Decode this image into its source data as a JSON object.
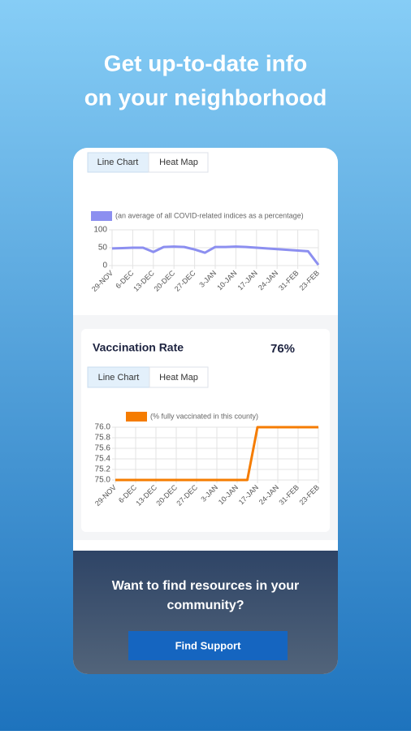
{
  "headline": [
    "Get up-to-date info",
    "on your neighborhood"
  ],
  "index_card": {
    "tabs": [
      "Line Chart",
      "Heat Map"
    ],
    "chart": {
      "type": "line",
      "legend": "(an average of all COVID-related indices as a percentage)",
      "color": "#8c8ff0",
      "categories": [
        "29-NOV",
        null,
        "6-DEC",
        null,
        "13-DEC",
        null,
        "20-DEC",
        null,
        "27-DEC",
        null,
        "3-JAN",
        null,
        "10-JAN",
        null,
        "17-JAN",
        null,
        "24-JAN",
        null,
        "31-FEB",
        null,
        "23-FEB"
      ],
      "values": [
        48,
        49,
        50,
        50,
        38,
        52,
        53,
        52,
        45,
        36,
        52,
        52,
        53,
        52,
        50,
        48,
        46,
        44,
        42,
        40,
        2
      ],
      "ylim": [
        0,
        100
      ],
      "yticks": [
        0,
        50,
        100
      ],
      "grid": true
    }
  },
  "vaccination_card": {
    "title": "Vaccination Rate",
    "rate": "76%",
    "tabs": [
      "Line Chart",
      "Heat Map"
    ],
    "chart": {
      "type": "line",
      "legend": "(% fully vaccinated in this county)",
      "color": "#f57c00",
      "categories": [
        "29-NOV",
        null,
        "6-DEC",
        null,
        "13-DEC",
        null,
        "20-DEC",
        null,
        "27-DEC",
        null,
        "3-JAN",
        null,
        "10-JAN",
        null,
        "17-JAN",
        null,
        "24-JAN",
        null,
        "31-FEB",
        null,
        "23-FEB"
      ],
      "values": [
        75,
        75,
        75,
        75,
        75,
        75,
        75,
        75,
        75,
        75,
        75,
        75,
        75,
        75,
        76,
        76,
        76,
        76,
        76,
        76,
        76
      ],
      "ylim": [
        75,
        76
      ],
      "yticks": [
        {
          "value": 75,
          "label": "75.0"
        },
        75.2,
        75.4,
        75.6,
        75.8,
        {
          "value": 76,
          "label": "76.0"
        }
      ],
      "grid": true
    }
  },
  "banner": {
    "lines": [
      "Want to find resources in your",
      "community?"
    ],
    "button": "Find Support"
  }
}
